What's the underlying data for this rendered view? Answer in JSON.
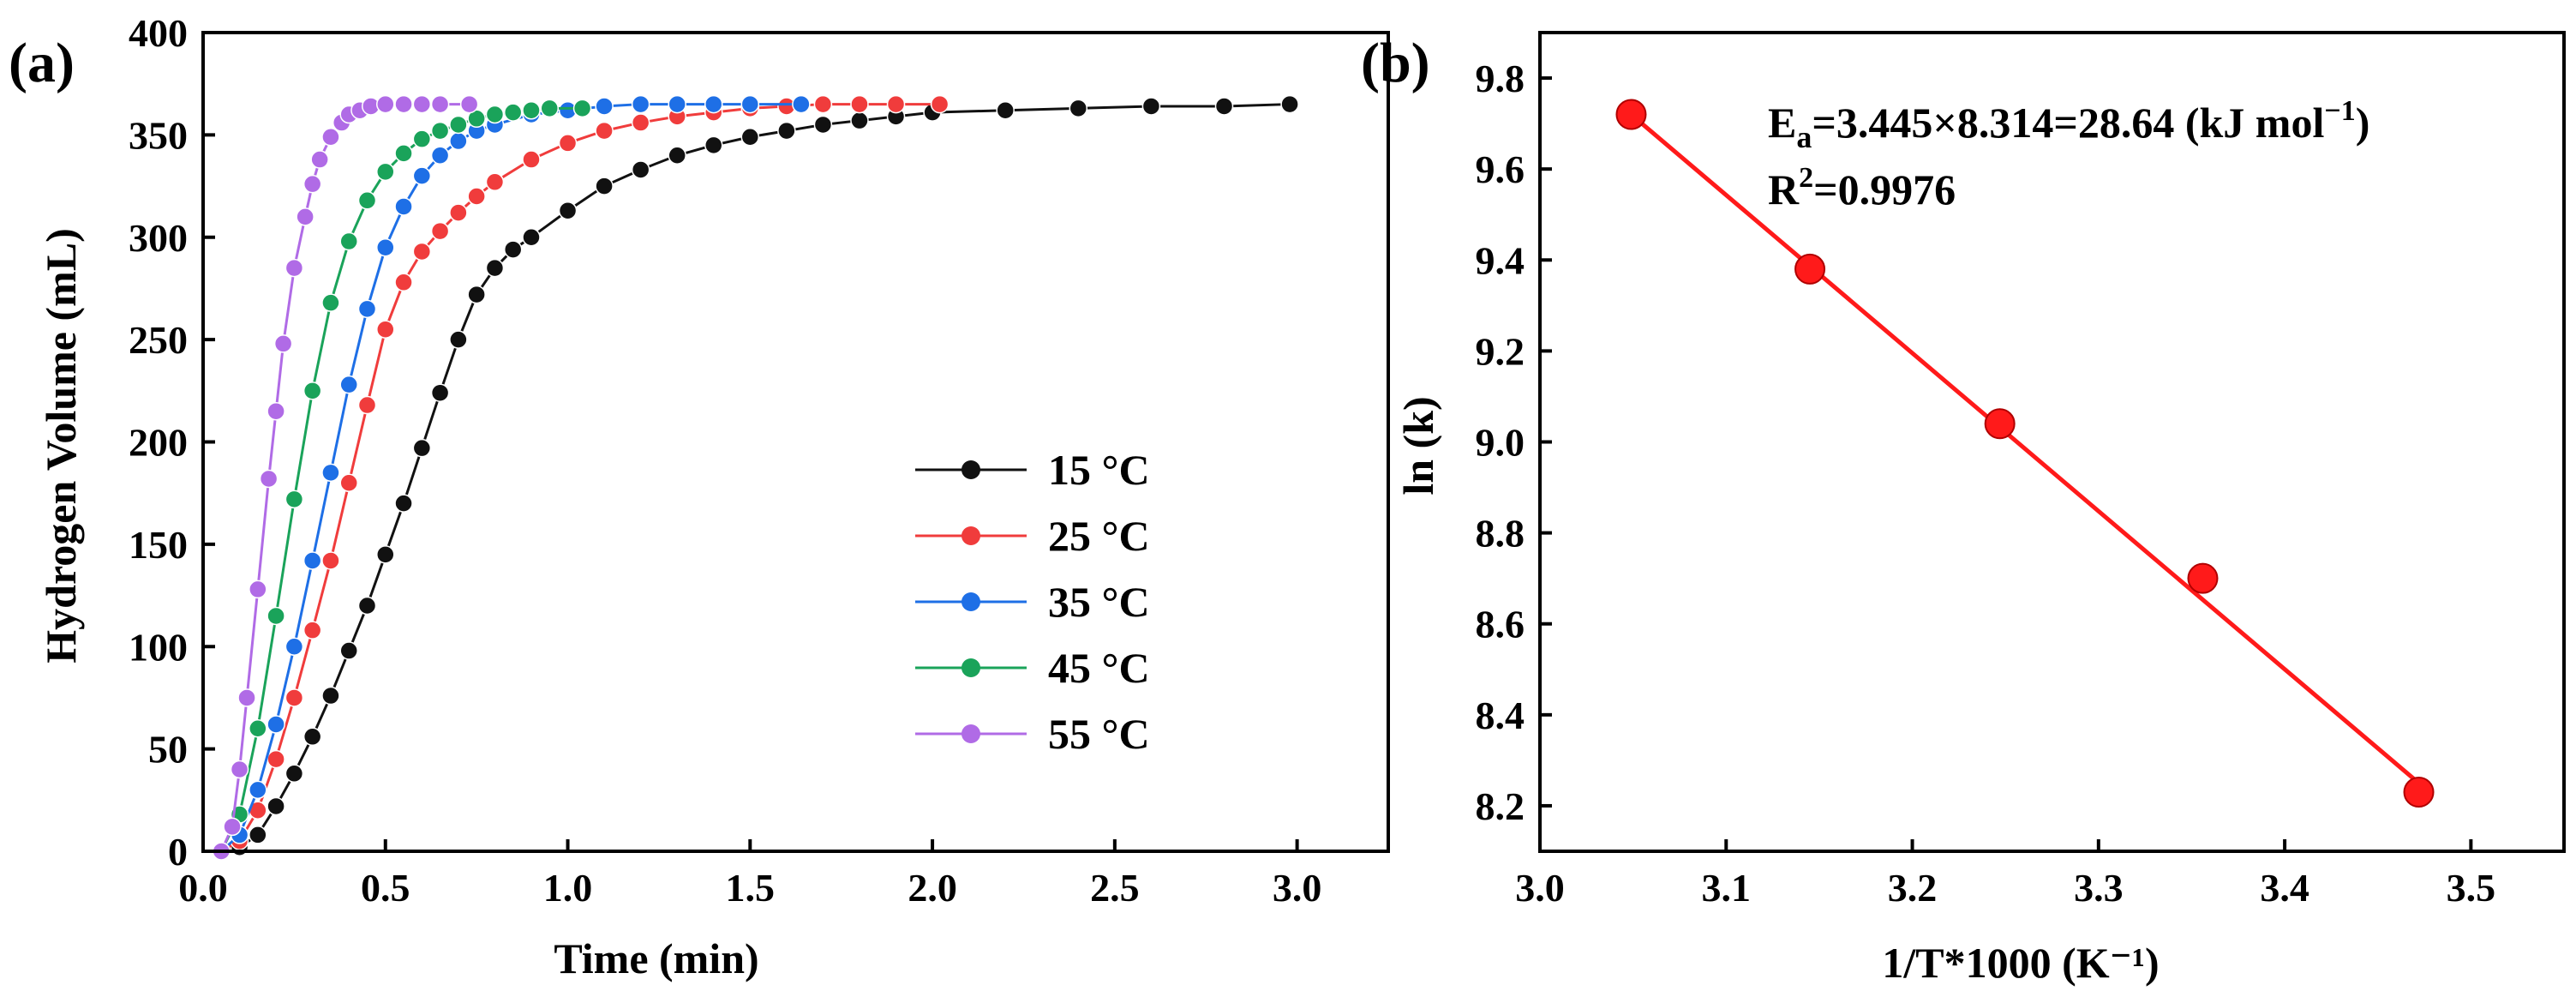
{
  "figure_id": "hydrogen-generation-kinetics",
  "chart_data": [
    {
      "panel": "(a)",
      "type": "scatter",
      "xlabel": "Time (min)",
      "ylabel": "Hydrogen Volume (mL)",
      "xlim": [
        0,
        3.25
      ],
      "ylim": [
        0,
        400
      ],
      "xticks": [
        "0.0",
        "0.5",
        "1.0",
        "1.5",
        "2.0",
        "2.5",
        "3.0"
      ],
      "yticks": [
        "0",
        "50",
        "100",
        "150",
        "200",
        "250",
        "300",
        "350",
        "400"
      ],
      "legend_position": "center-right",
      "series": [
        {
          "name": "15 °C",
          "color": "#111111",
          "x": [
            0.05,
            0.1,
            0.15,
            0.2,
            0.25,
            0.3,
            0.35,
            0.4,
            0.45,
            0.5,
            0.55,
            0.6,
            0.65,
            0.7,
            0.75,
            0.8,
            0.85,
            0.9,
            1.0,
            1.1,
            1.2,
            1.3,
            1.4,
            1.5,
            1.6,
            1.7,
            1.8,
            1.9,
            2.0,
            2.2,
            2.4,
            2.6,
            2.8,
            2.98
          ],
          "y": [
            0,
            2,
            8,
            22,
            38,
            56,
            76,
            98,
            120,
            145,
            170,
            197,
            224,
            250,
            272,
            285,
            294,
            300,
            313,
            325,
            333,
            340,
            345,
            349,
            352,
            355,
            357,
            359,
            361,
            362,
            363,
            364,
            364,
            365
          ]
        },
        {
          "name": "25 °C",
          "color": "#f03c3c",
          "x": [
            0.05,
            0.1,
            0.15,
            0.2,
            0.25,
            0.3,
            0.35,
            0.4,
            0.45,
            0.5,
            0.55,
            0.6,
            0.65,
            0.7,
            0.75,
            0.8,
            0.9,
            1.0,
            1.1,
            1.2,
            1.3,
            1.4,
            1.5,
            1.6,
            1.7,
            1.8,
            1.9,
            2.02
          ],
          "y": [
            0,
            5,
            20,
            45,
            75,
            108,
            142,
            180,
            218,
            255,
            278,
            293,
            303,
            312,
            320,
            327,
            338,
            346,
            352,
            356,
            359,
            361,
            363,
            364,
            365,
            365,
            365,
            365
          ]
        },
        {
          "name": "35 °C",
          "color": "#1e6fe6",
          "x": [
            0.05,
            0.1,
            0.15,
            0.2,
            0.25,
            0.3,
            0.35,
            0.4,
            0.45,
            0.5,
            0.55,
            0.6,
            0.65,
            0.7,
            0.75,
            0.8,
            0.9,
            1.0,
            1.1,
            1.2,
            1.3,
            1.4,
            1.5,
            1.64
          ],
          "y": [
            0,
            8,
            30,
            62,
            100,
            142,
            185,
            228,
            265,
            295,
            315,
            330,
            340,
            347,
            352,
            355,
            360,
            362,
            364,
            365,
            365,
            365,
            365,
            365
          ]
        },
        {
          "name": "45 °C",
          "color": "#1aa35a",
          "x": [
            0.05,
            0.1,
            0.15,
            0.2,
            0.25,
            0.3,
            0.35,
            0.4,
            0.45,
            0.5,
            0.55,
            0.6,
            0.65,
            0.7,
            0.75,
            0.8,
            0.85,
            0.9,
            0.95,
            1.04
          ],
          "y": [
            0,
            18,
            60,
            115,
            172,
            225,
            268,
            298,
            318,
            332,
            341,
            348,
            352,
            355,
            358,
            360,
            361,
            362,
            363,
            363
          ]
        },
        {
          "name": "55 °C",
          "color": "#b06be6",
          "x": [
            0.05,
            0.08,
            0.1,
            0.12,
            0.15,
            0.18,
            0.2,
            0.22,
            0.25,
            0.28,
            0.3,
            0.32,
            0.35,
            0.38,
            0.4,
            0.43,
            0.46,
            0.5,
            0.55,
            0.6,
            0.65,
            0.73
          ],
          "y": [
            0,
            12,
            40,
            75,
            128,
            182,
            215,
            248,
            285,
            310,
            326,
            338,
            349,
            356,
            360,
            362,
            364,
            365,
            365,
            365,
            365,
            365
          ]
        }
      ]
    },
    {
      "panel": "(b)",
      "type": "scatter",
      "xlabel": "1/T*1000 (K⁻¹)",
      "ylabel": "ln (k)",
      "xlim": [
        3.0,
        3.55
      ],
      "ylim": [
        8.1,
        9.9
      ],
      "xticks": [
        "3.0",
        "3.1",
        "3.2",
        "3.3",
        "3.4",
        "3.5"
      ],
      "yticks": [
        "8.2",
        "8.4",
        "8.6",
        "8.8",
        "9.0",
        "9.2",
        "9.4",
        "9.6",
        "9.8"
      ],
      "series": [
        {
          "name": "ln(k)",
          "color": "#ff1a1a",
          "x": [
            3.049,
            3.145,
            3.247,
            3.356,
            3.472
          ],
          "y": [
            9.72,
            9.38,
            9.04,
            8.7,
            8.23
          ]
        }
      ],
      "fit_line": {
        "x": [
          3.049,
          3.472
        ],
        "y": [
          9.72,
          8.25
        ],
        "color": "#ff1a1a"
      },
      "annotations": {
        "ea_prefix": "E",
        "ea_sub": "a",
        "ea_text": "=3.445×8.314=28.64 (kJ mol",
        "ea_sup": "−1",
        "ea_close": ")",
        "r2_prefix": "R",
        "r2_sup": "2",
        "r2_text": "=0.9976"
      }
    }
  ]
}
